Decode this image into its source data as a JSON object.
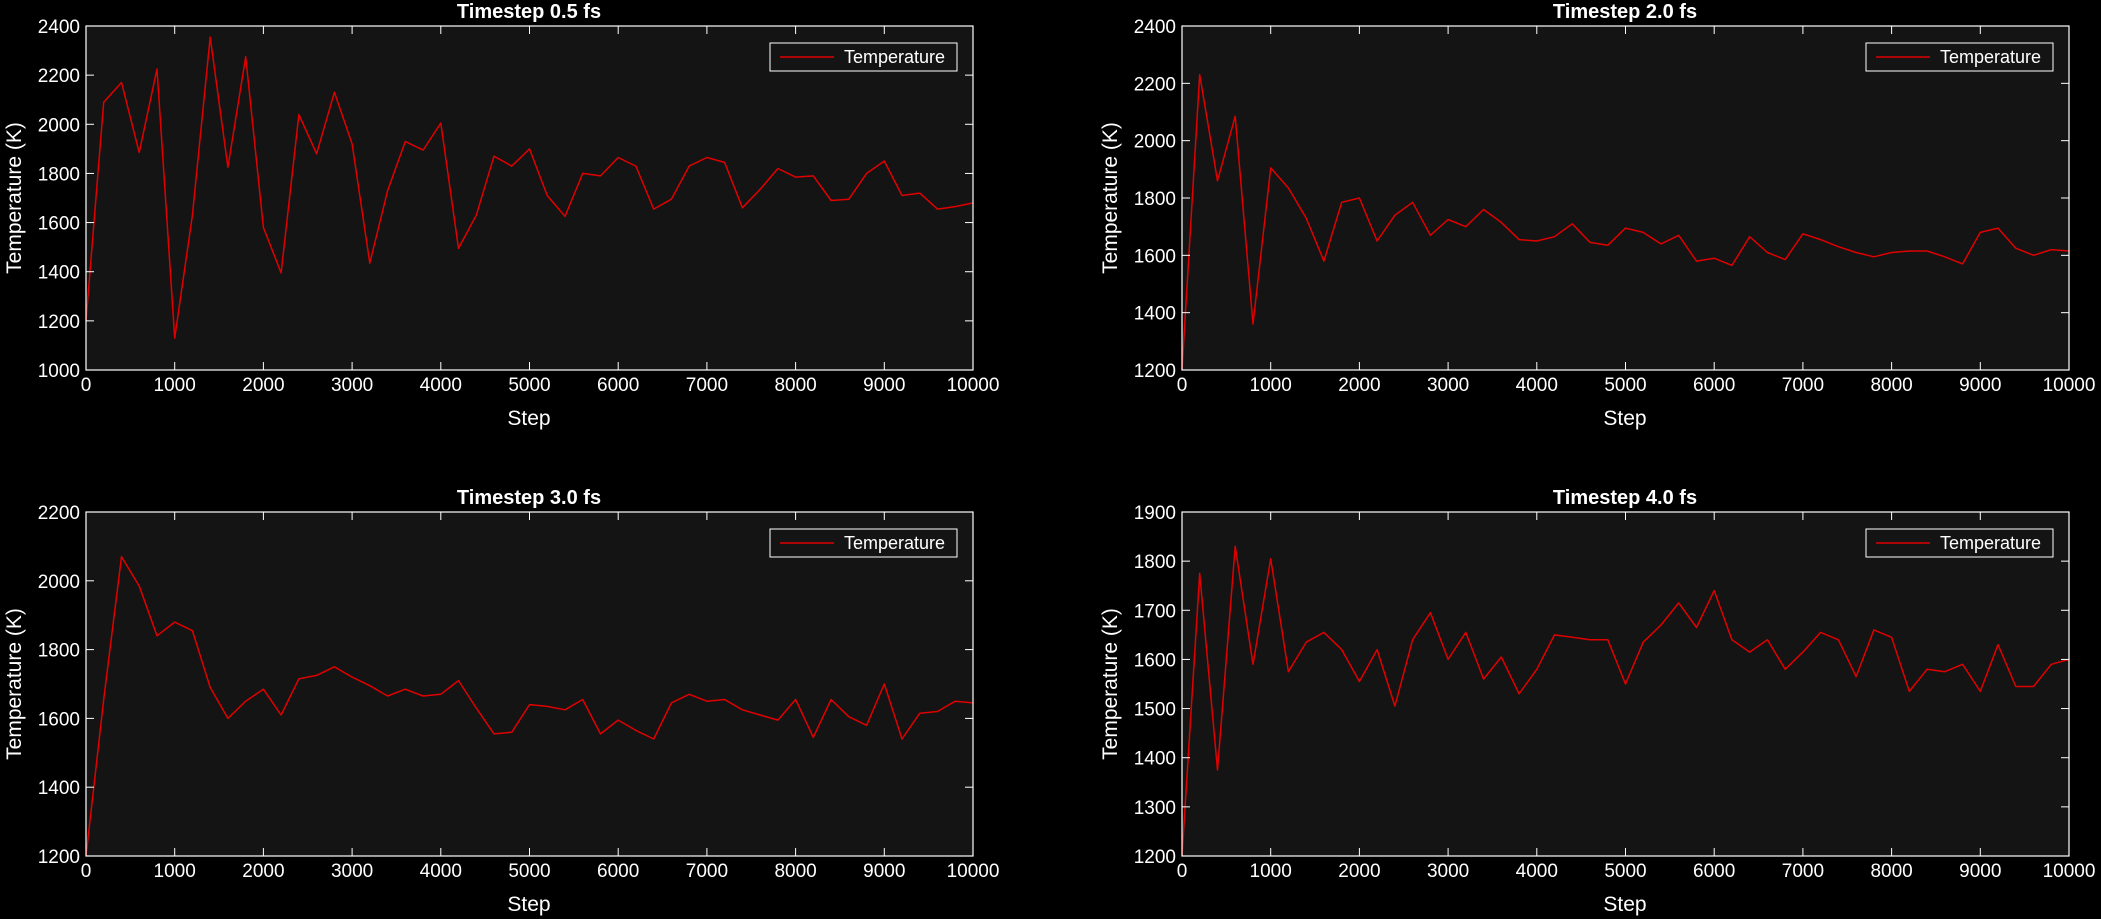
{
  "figure": {
    "background": "#000000",
    "plot_background": "#141414",
    "axis_color": "#ffffff",
    "line_color": "#e00000"
  },
  "chart_data": [
    {
      "type": "line",
      "title": "Timestep 0.5 fs",
      "xlabel": "Step",
      "ylabel": "Temperature (K)",
      "xlim": [
        0,
        10000
      ],
      "ylim": [
        1000,
        2400
      ],
      "xticks": [
        0,
        1000,
        2000,
        3000,
        4000,
        5000,
        6000,
        7000,
        8000,
        9000,
        10000
      ],
      "yticks": [
        1000,
        1200,
        1400,
        1600,
        1800,
        2000,
        2200,
        2400
      ],
      "grid": false,
      "legend_position": "top-right",
      "series": [
        {
          "name": "Temperature",
          "color": "#e00000",
          "x": [
            0,
            200,
            400,
            600,
            800,
            1000,
            1200,
            1400,
            1600,
            1800,
            2000,
            2200,
            2400,
            2600,
            2800,
            3000,
            3200,
            3400,
            3600,
            3800,
            4000,
            4200,
            4400,
            4600,
            4800,
            5000,
            5200,
            5400,
            5600,
            5800,
            6000,
            6200,
            6400,
            6600,
            6800,
            7000,
            7200,
            7400,
            7600,
            7800,
            8000,
            8200,
            8400,
            8600,
            8800,
            9000,
            9200,
            9400,
            9600,
            9800,
            10000
          ],
          "y": [
            1200,
            2090,
            2170,
            1885,
            2225,
            1130,
            1630,
            2355,
            1825,
            2275,
            1580,
            1395,
            2040,
            1880,
            2130,
            1920,
            1435,
            1730,
            1930,
            1895,
            2005,
            1495,
            1630,
            1870,
            1830,
            1900,
            1710,
            1625,
            1800,
            1790,
            1865,
            1830,
            1655,
            1695,
            1830,
            1865,
            1845,
            1660,
            1735,
            1820,
            1785,
            1790,
            1690,
            1695,
            1800,
            1850,
            1710,
            1720,
            1655,
            1665,
            1680
          ]
        }
      ]
    },
    {
      "type": "line",
      "title": "Timestep 2.0 fs",
      "xlabel": "Step",
      "ylabel": "Temperature (K)",
      "xlim": [
        0,
        10000
      ],
      "ylim": [
        1200,
        2400
      ],
      "xticks": [
        0,
        1000,
        2000,
        3000,
        4000,
        5000,
        6000,
        7000,
        8000,
        9000,
        10000
      ],
      "yticks": [
        1200,
        1400,
        1600,
        1800,
        2000,
        2200,
        2400
      ],
      "grid": false,
      "legend_position": "top-right",
      "series": [
        {
          "name": "Temperature",
          "color": "#e00000",
          "x": [
            0,
            200,
            400,
            600,
            800,
            1000,
            1200,
            1400,
            1600,
            1800,
            2000,
            2200,
            2400,
            2600,
            2800,
            3000,
            3200,
            3400,
            3600,
            3800,
            4000,
            4200,
            4400,
            4600,
            4800,
            5000,
            5200,
            5400,
            5600,
            5800,
            6000,
            6200,
            6400,
            6600,
            6800,
            7000,
            7200,
            7400,
            7600,
            7800,
            8000,
            8200,
            8400,
            8600,
            8800,
            9000,
            9200,
            9400,
            9600,
            9800,
            10000
          ],
          "y": [
            1200,
            2230,
            1860,
            2085,
            1360,
            1905,
            1835,
            1730,
            1580,
            1785,
            1800,
            1650,
            1740,
            1785,
            1670,
            1725,
            1700,
            1760,
            1715,
            1655,
            1650,
            1665,
            1710,
            1645,
            1635,
            1695,
            1680,
            1640,
            1670,
            1580,
            1590,
            1565,
            1665,
            1610,
            1585,
            1675,
            1655,
            1630,
            1610,
            1595,
            1610,
            1615,
            1615,
            1595,
            1570,
            1680,
            1695,
            1625,
            1600,
            1620,
            1615
          ]
        }
      ]
    },
    {
      "type": "line",
      "title": "Timestep 3.0 fs",
      "xlabel": "Step",
      "ylabel": "Temperature (K)",
      "xlim": [
        0,
        10000
      ],
      "ylim": [
        1200,
        2200
      ],
      "xticks": [
        0,
        1000,
        2000,
        3000,
        4000,
        5000,
        6000,
        7000,
        8000,
        9000,
        10000
      ],
      "yticks": [
        1200,
        1400,
        1600,
        1800,
        2000,
        2200
      ],
      "grid": false,
      "legend_position": "top-right",
      "series": [
        {
          "name": "Temperature",
          "color": "#e00000",
          "x": [
            0,
            200,
            400,
            600,
            800,
            1000,
            1200,
            1400,
            1600,
            1800,
            2000,
            2200,
            2400,
            2600,
            2800,
            3000,
            3200,
            3400,
            3600,
            3800,
            4000,
            4200,
            4400,
            4600,
            4800,
            5000,
            5200,
            5400,
            5600,
            5800,
            6000,
            6200,
            6400,
            6600,
            6800,
            7000,
            7200,
            7400,
            7600,
            7800,
            8000,
            8200,
            8400,
            8600,
            8800,
            9000,
            9200,
            9400,
            9600,
            9800,
            10000
          ],
          "y": [
            1200,
            1655,
            2070,
            1985,
            1840,
            1880,
            1855,
            1690,
            1600,
            1650,
            1685,
            1610,
            1715,
            1725,
            1750,
            1720,
            1695,
            1665,
            1685,
            1665,
            1670,
            1710,
            1630,
            1555,
            1560,
            1640,
            1635,
            1625,
            1655,
            1555,
            1595,
            1565,
            1540,
            1645,
            1670,
            1650,
            1655,
            1625,
            1610,
            1595,
            1655,
            1545,
            1655,
            1605,
            1580,
            1700,
            1540,
            1615,
            1620,
            1650,
            1645
          ]
        }
      ]
    },
    {
      "type": "line",
      "title": "Timestep 4.0 fs",
      "xlabel": "Step",
      "ylabel": "Temperature (K)",
      "xlim": [
        0,
        10000
      ],
      "ylim": [
        1200,
        1900
      ],
      "xticks": [
        0,
        1000,
        2000,
        3000,
        4000,
        5000,
        6000,
        7000,
        8000,
        9000,
        10000
      ],
      "yticks": [
        1200,
        1300,
        1400,
        1500,
        1600,
        1700,
        1800,
        1900
      ],
      "grid": false,
      "legend_position": "top-right",
      "series": [
        {
          "name": "Temperature",
          "color": "#e00000",
          "x": [
            0,
            200,
            400,
            600,
            800,
            1000,
            1200,
            1400,
            1600,
            1800,
            2000,
            2200,
            2400,
            2600,
            2800,
            3000,
            3200,
            3400,
            3600,
            3800,
            4000,
            4200,
            4400,
            4600,
            4800,
            5000,
            5200,
            5400,
            5600,
            5800,
            6000,
            6200,
            6400,
            6600,
            6800,
            7000,
            7200,
            7400,
            7600,
            7800,
            8000,
            8200,
            8400,
            8600,
            8800,
            9000,
            9200,
            9400,
            9600,
            9800,
            10000
          ],
          "y": [
            1200,
            1775,
            1375,
            1830,
            1590,
            1805,
            1575,
            1635,
            1655,
            1620,
            1555,
            1620,
            1505,
            1640,
            1695,
            1600,
            1655,
            1560,
            1605,
            1530,
            1580,
            1650,
            1645,
            1640,
            1640,
            1550,
            1635,
            1670,
            1715,
            1665,
            1740,
            1640,
            1615,
            1640,
            1580,
            1615,
            1655,
            1640,
            1565,
            1660,
            1645,
            1535,
            1580,
            1575,
            1590,
            1535,
            1630,
            1545,
            1545,
            1590,
            1600
          ]
        }
      ]
    }
  ]
}
